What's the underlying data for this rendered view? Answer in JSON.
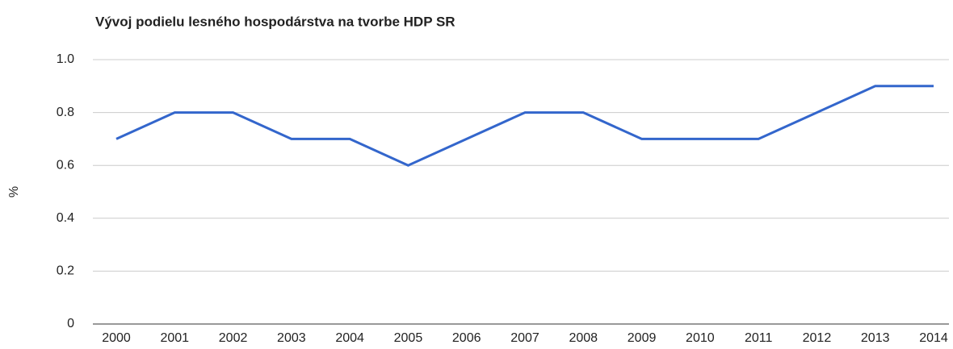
{
  "chart_data": {
    "type": "line",
    "title": "Vývoj podielu lesného hospodárstva na tvorbe HDP SR",
    "ylabel": "%",
    "categories": [
      "2000",
      "2001",
      "2002",
      "2003",
      "2004",
      "2005",
      "2006",
      "2007",
      "2008",
      "2009",
      "2010",
      "2011",
      "2012",
      "2013",
      "2014"
    ],
    "series": [
      {
        "name": "%",
        "color": "#3366cc",
        "values": [
          0.7,
          0.8,
          0.8,
          0.7,
          0.7,
          0.6,
          0.7,
          0.8,
          0.8,
          0.7,
          0.7,
          0.7,
          0.8,
          0.9,
          0.9
        ]
      }
    ],
    "ylim": [
      0,
      1
    ],
    "yticks": [
      0,
      0.2,
      0.4,
      0.6,
      0.8,
      {
        "value": 1,
        "label": "1.0"
      }
    ],
    "grid": true,
    "legend": "none"
  }
}
